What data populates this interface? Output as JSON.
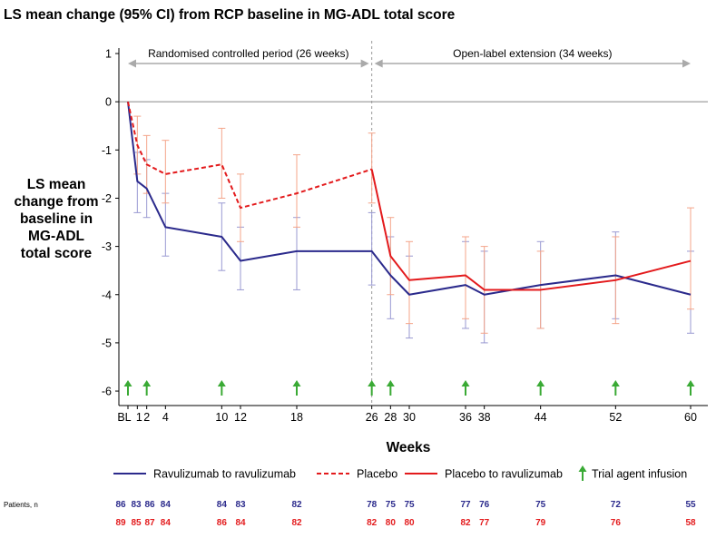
{
  "chart_data": {
    "type": "line",
    "title": "LS mean change (95% CI) from RCP baseline in MG-ADL total score",
    "ylabel_lines": [
      "LS mean",
      "change from",
      "baseline in",
      "MG-ADL",
      "total score"
    ],
    "xlabel": "Weeks",
    "x_ticks": [
      0,
      1,
      2,
      4,
      10,
      12,
      18,
      26,
      28,
      30,
      36,
      38,
      44,
      52,
      60
    ],
    "x_tick_labels": [
      "BL",
      "1",
      "2",
      "4",
      "10",
      "12",
      "18",
      "26",
      "28",
      "30",
      "36",
      "38",
      "44",
      "52",
      "60"
    ],
    "ylim": [
      -6.3,
      1
    ],
    "y_ticks": [
      1,
      0,
      -1,
      -2,
      -3,
      -4,
      -5,
      -6
    ],
    "periods": [
      {
        "label": "Randomised controlled period (26 weeks)",
        "from": 0,
        "to": 26
      },
      {
        "label": "Open-label extension (34 weeks)",
        "from": 26,
        "to": 60
      }
    ],
    "period_divider_x": 26,
    "zero_line": true,
    "series": [
      {
        "name": "Ravulizumab to ravulizumab",
        "color": "#2b2a8c",
        "ci_color": "#9a9ad2",
        "dash": "solid",
        "points": [
          {
            "x": 0,
            "y": 0
          },
          {
            "x": 1,
            "y": -1.65,
            "lo": -2.3,
            "hi": -1.05
          },
          {
            "x": 2,
            "y": -1.8,
            "lo": -2.4,
            "hi": -1.2
          },
          {
            "x": 4,
            "y": -2.6,
            "lo": -3.2,
            "hi": -1.9
          },
          {
            "x": 10,
            "y": -2.8,
            "lo": -3.5,
            "hi": -2.1
          },
          {
            "x": 12,
            "y": -3.3,
            "lo": -3.9,
            "hi": -2.6
          },
          {
            "x": 18,
            "y": -3.1,
            "lo": -3.9,
            "hi": -2.4
          },
          {
            "x": 26,
            "y": -3.1,
            "lo": -3.8,
            "hi": -2.3
          },
          {
            "x": 28,
            "y": -3.6,
            "lo": -4.5,
            "hi": -2.8
          },
          {
            "x": 30,
            "y": -4.0,
            "lo": -4.9,
            "hi": -3.2
          },
          {
            "x": 36,
            "y": -3.8,
            "lo": -4.7,
            "hi": -2.9
          },
          {
            "x": 38,
            "y": -4.0,
            "lo": -5.0,
            "hi": -3.1
          },
          {
            "x": 44,
            "y": -3.8,
            "lo": -4.7,
            "hi": -2.9
          },
          {
            "x": 52,
            "y": -3.6,
            "lo": -4.5,
            "hi": -2.7
          },
          {
            "x": 60,
            "y": -4.0,
            "lo": -4.8,
            "hi": -3.1
          }
        ]
      },
      {
        "name": "Placebo",
        "color": "#e31a1c",
        "ci_color": "#f4a58a",
        "dash": "dashed",
        "points": [
          {
            "x": 0,
            "y": 0
          },
          {
            "x": 1,
            "y": -0.9,
            "lo": -1.5,
            "hi": -0.3
          },
          {
            "x": 2,
            "y": -1.3,
            "lo": -1.9,
            "hi": -0.7
          },
          {
            "x": 4,
            "y": -1.5,
            "lo": -2.1,
            "hi": -0.8
          },
          {
            "x": 10,
            "y": -1.3,
            "lo": -2.0,
            "hi": -0.55
          },
          {
            "x": 12,
            "y": -2.2,
            "lo": -2.9,
            "hi": -1.5
          },
          {
            "x": 18,
            "y": -1.9,
            "lo": -2.6,
            "hi": -1.1
          },
          {
            "x": 26,
            "y": -1.4,
            "lo": -2.1,
            "hi": -0.65
          }
        ]
      },
      {
        "name": "Placebo to ravulizumab",
        "color": "#e31a1c",
        "ci_color": "#f4a58a",
        "dash": "solid",
        "points": [
          {
            "x": 26,
            "y": -1.4
          },
          {
            "x": 28,
            "y": -3.2,
            "lo": -4.0,
            "hi": -2.4
          },
          {
            "x": 30,
            "y": -3.7,
            "lo": -4.6,
            "hi": -2.9
          },
          {
            "x": 36,
            "y": -3.6,
            "lo": -4.5,
            "hi": -2.8
          },
          {
            "x": 38,
            "y": -3.9,
            "lo": -4.8,
            "hi": -3.0
          },
          {
            "x": 44,
            "y": -3.9,
            "lo": -4.7,
            "hi": -3.1
          },
          {
            "x": 52,
            "y": -3.7,
            "lo": -4.6,
            "hi": -2.8
          },
          {
            "x": 60,
            "y": -3.3,
            "lo": -4.3,
            "hi": -2.2
          }
        ]
      }
    ],
    "infusion_weeks": [
      0,
      2,
      10,
      18,
      26,
      28,
      36,
      44,
      52,
      60
    ],
    "infusion_color": "#3aaa35",
    "legend": {
      "placement": "bottom",
      "items": [
        {
          "label": "Ravulizumab to ravulizumab",
          "kind": "line",
          "color": "#2b2a8c",
          "dash": "solid"
        },
        {
          "label": "Placebo",
          "kind": "line",
          "color": "#e31a1c",
          "dash": "dashed"
        },
        {
          "label": "Placebo to ravulizumab",
          "kind": "line",
          "color": "#e31a1c",
          "dash": "solid"
        },
        {
          "label": "Trial agent infusion",
          "kind": "arrow",
          "color": "#3aaa35"
        }
      ]
    },
    "patients": {
      "label": "Patients, n",
      "weeks": [
        0,
        1,
        2,
        4,
        10,
        12,
        18,
        26,
        28,
        30,
        36,
        38,
        44,
        52,
        60
      ],
      "rows": [
        {
          "color": "#2b2a8c",
          "values": [
            "86",
            "83",
            "86",
            "84",
            "84",
            "83",
            "82",
            "78",
            "75",
            "75",
            "77",
            "76",
            "75",
            "72",
            "55"
          ]
        },
        {
          "color": "#e31a1c",
          "values": [
            "89",
            "85",
            "87",
            "84",
            "86",
            "84",
            "82",
            "82",
            "80",
            "80",
            "82",
            "77",
            "79",
            "76",
            "58"
          ]
        }
      ]
    }
  }
}
